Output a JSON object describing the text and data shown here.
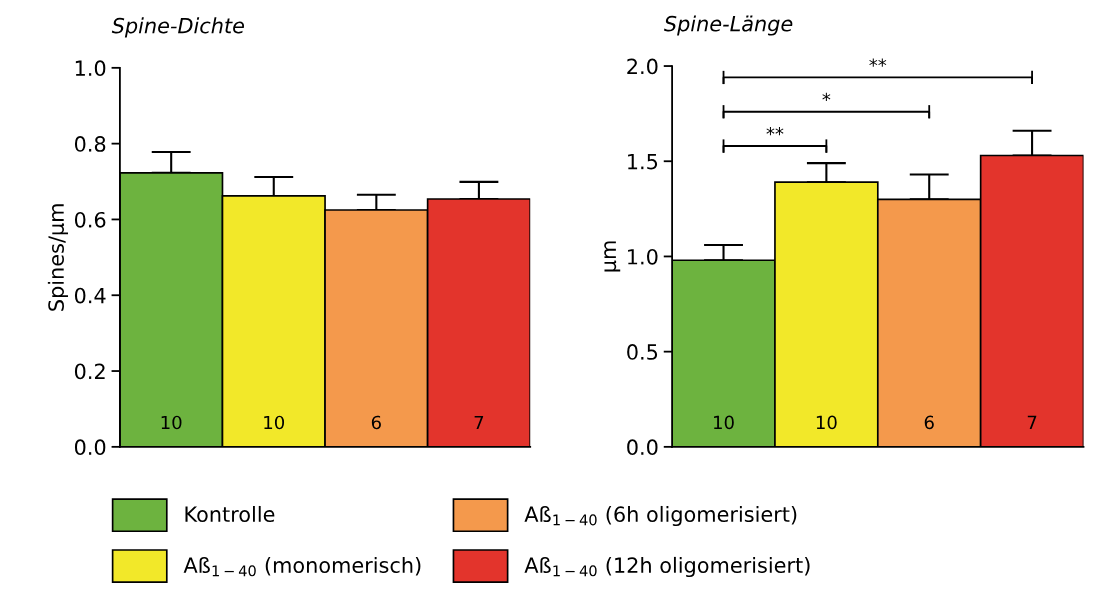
{
  "chart_data": [
    {
      "type": "bar",
      "title": "Spine-Dichte",
      "ylabel": "Spines/µm",
      "categories": [
        null
      ],
      "series": [
        {
          "name": "Kontrolle",
          "color": "#6db33f",
          "values": [
            0.723
          ],
          "errors": [
            [
              0.723,
              0.778
            ]
          ]
        },
        {
          "name": "Aß$_{1−40}$ (monomerisch)",
          "color": "#f2e829",
          "values": [
            0.662
          ],
          "errors": [
            [
              0.662,
              0.712
            ]
          ]
        },
        {
          "name": "Aß$_{1−40}$ (6h oligomerisiert)",
          "color": "#f4994c",
          "values": [
            0.625
          ],
          "errors": [
            [
              0.625,
              0.665
            ]
          ]
        },
        {
          "name": "Aß$_{1−40}$ (12h oligomerisiert)",
          "color": "#e3342c",
          "values": [
            0.654
          ],
          "errors": [
            [
              0.654,
              0.699
            ]
          ]
        }
      ],
      "ylim": [
        0,
        1.0
      ],
      "yticks": [
        {
          "value": 0,
          "label": "0.0"
        },
        0.2,
        0.4,
        0.6,
        0.8,
        {
          "value": 1.0,
          "label": "1.0"
        }
      ],
      "annotations": [
        "10",
        "10",
        "6",
        "7"
      ],
      "grid": false,
      "legend": "bottom"
    },
    {
      "type": "bar",
      "title": "Spine-Länge",
      "ylabel": "µm",
      "categories": [
        null
      ],
      "series": [
        {
          "color": "#6db33f",
          "values": [
            0.98
          ],
          "errors": [
            [
              0.98,
              1.06
            ]
          ]
        },
        {
          "color": "#f2e829",
          "values": [
            1.39
          ],
          "errors": [
            [
              1.39,
              1.49
            ]
          ]
        },
        {
          "color": "#f4994c",
          "values": [
            1.3
          ],
          "errors": [
            [
              1.3,
              1.43
            ]
          ]
        },
        {
          "color": "#e3342c",
          "values": [
            1.53
          ],
          "errors": [
            [
              1.53,
              1.66
            ]
          ]
        }
      ],
      "ylim": [
        0,
        2.0
      ],
      "yticks": [
        {
          "value": 0,
          "label": "0.0"
        },
        0.5,
        {
          "value": 1.0,
          "label": "1.0"
        },
        1.5,
        {
          "value": 2.0,
          "label": "2.0"
        }
      ],
      "annotations": [
        "10",
        "10",
        "6",
        "7",
        "**",
        "*",
        "**"
      ],
      "grid": false
    }
  ]
}
